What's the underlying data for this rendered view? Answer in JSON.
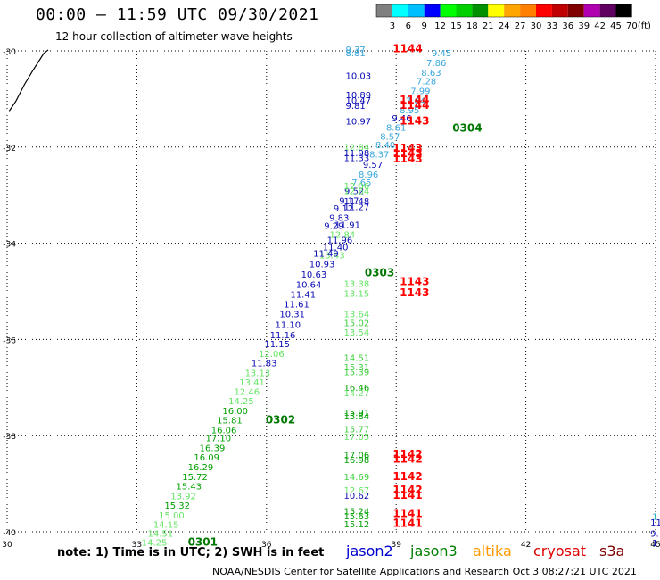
{
  "header": {
    "title": "00:00 – 11:59 UTC 09/30/2021",
    "subtitle": "12 hour collection of altimeter wave heights"
  },
  "legend": {
    "colors": [
      "#808080",
      "#00ffff",
      "#00bfff",
      "#0000ff",
      "#00ff00",
      "#00d000",
      "#009000",
      "#ffff00",
      "#ffa500",
      "#ff8000",
      "#ff0000",
      "#c00000",
      "#800000",
      "#b000b0",
      "#600060",
      "#000000"
    ],
    "labels": [
      "3",
      "6",
      "9",
      "12",
      "15",
      "18",
      "21",
      "24",
      "27",
      "30",
      "33",
      "36",
      "39",
      "42",
      "45",
      "70",
      "(ft)"
    ]
  },
  "axes": {
    "x_ticks": [
      "30",
      "33",
      "36",
      "39",
      "42",
      "45"
    ],
    "y_ticks": [
      "-30",
      "-32",
      "-34",
      "-36",
      "-38",
      "-40"
    ]
  },
  "notes": "note:  1) Time is in UTC;  2) SWH is in feet",
  "satellites": [
    {
      "name": "jason2",
      "color": "#0000d0"
    },
    {
      "name": "jason3",
      "color": "#008000"
    },
    {
      "name": "altika",
      "color": "#ff9900"
    },
    {
      "name": "cryosat",
      "color": "#e00000"
    },
    {
      "name": "s3a",
      "color": "#800000"
    }
  ],
  "footer": "NOAA/NESDIS Center for Satellite Applications and Research    Oct  3 08:27:21 UTC 2021",
  "map_data": {
    "lon_range": [
      30,
      45
    ],
    "lat_range": [
      -40,
      -30
    ],
    "colors": {
      "blue": "#0a0ab4",
      "lightblue": "#38a6dc",
      "red": "#ff0000",
      "green": "#00a000",
      "lightgreen": "#40d040",
      "paleg": "#64e464",
      "darkgreen": "#007800",
      "teal": "#20b4b4"
    },
    "labels": [
      {
        "t": "9.37",
        "lon": 37.83,
        "lat": -30.04,
        "c": "lightblue"
      },
      {
        "t": "8.81",
        "lon": 37.83,
        "lat": -30.11,
        "c": "lightblue"
      },
      {
        "t": "1144",
        "lon": 38.92,
        "lat": -30.03,
        "c": "red",
        "b": 1
      },
      {
        "t": "9.45",
        "lon": 39.82,
        "lat": -30.11,
        "c": "lightblue"
      },
      {
        "t": "7.86",
        "lon": 39.7,
        "lat": -30.32,
        "c": "lightblue"
      },
      {
        "t": "8.63",
        "lon": 39.58,
        "lat": -30.52,
        "c": "lightblue"
      },
      {
        "t": "7.28",
        "lon": 39.47,
        "lat": -30.7,
        "c": "lightblue"
      },
      {
        "t": "7.99",
        "lon": 39.33,
        "lat": -30.9,
        "c": "lightblue"
      },
      {
        "t": "7.64",
        "lon": 39.22,
        "lat": -31.1,
        "c": "lightblue"
      },
      {
        "t": "8.95",
        "lon": 39.08,
        "lat": -31.3,
        "c": "lightblue"
      },
      {
        "t": "9.46",
        "lon": 38.9,
        "lat": -31.47,
        "c": "blue"
      },
      {
        "t": "8.61",
        "lon": 38.77,
        "lat": -31.66,
        "c": "lightblue"
      },
      {
        "t": "8.57",
        "lon": 38.63,
        "lat": -31.85,
        "c": "lightblue"
      },
      {
        "t": "8.40",
        "lon": 38.52,
        "lat": -32.02,
        "c": "lightblue"
      },
      {
        "t": "8.37",
        "lon": 38.38,
        "lat": -32.22,
        "c": "lightblue"
      },
      {
        "t": "9.57",
        "lon": 38.23,
        "lat": -32.43,
        "c": "blue"
      },
      {
        "t": "8.96",
        "lon": 38.13,
        "lat": -32.63,
        "c": "lightblue"
      },
      {
        "t": "7.65",
        "lon": 37.97,
        "lat": -32.8,
        "c": "lightblue"
      },
      {
        "t": "9.52",
        "lon": 37.8,
        "lat": -32.98,
        "c": "blue"
      },
      {
        "t": "9.17",
        "lon": 37.68,
        "lat": -33.18,
        "c": "blue"
      },
      {
        "t": "9.12",
        "lon": 37.55,
        "lat": -33.34,
        "c": "blue"
      },
      {
        "t": "9.83",
        "lon": 37.45,
        "lat": -33.53,
        "c": "blue"
      },
      {
        "t": "9.29",
        "lon": 37.33,
        "lat": -33.7,
        "c": "blue"
      },
      {
        "t": "10.03",
        "lon": 37.83,
        "lat": -30.58,
        "c": "blue"
      },
      {
        "t": "10.89",
        "lon": 37.83,
        "lat": -30.98,
        "c": "blue"
      },
      {
        "t": "10.47",
        "lon": 37.83,
        "lat": -31.09,
        "c": "blue"
      },
      {
        "t": "9.81",
        "lon": 37.83,
        "lat": -31.21,
        "c": "blue"
      },
      {
        "t": "1144",
        "lon": 39.08,
        "lat": -31.09,
        "c": "red",
        "b": 1
      },
      {
        "t": "1144",
        "lon": 39.08,
        "lat": -31.21,
        "c": "red",
        "b": 1
      },
      {
        "t": "10.97",
        "lon": 37.83,
        "lat": -31.53,
        "c": "blue"
      },
      {
        "t": "1143",
        "lon": 39.08,
        "lat": -31.53,
        "c": "red",
        "b": 1
      },
      {
        "t": "0304",
        "lon": 40.3,
        "lat": -31.68,
        "c": "darkgreen",
        "b": 1
      },
      {
        "t": "12.84",
        "lon": 37.79,
        "lat": -32.07,
        "c": "paleg"
      },
      {
        "t": "11.98",
        "lon": 37.79,
        "lat": -32.19,
        "c": "blue"
      },
      {
        "t": "11.33",
        "lon": 37.79,
        "lat": -32.29,
        "c": "blue"
      },
      {
        "t": "1143",
        "lon": 38.92,
        "lat": -32.1,
        "c": "red",
        "b": 1
      },
      {
        "t": "1143",
        "lon": 38.92,
        "lat": -32.21,
        "c": "red",
        "b": 1
      },
      {
        "t": "1143",
        "lon": 38.92,
        "lat": -32.32,
        "c": "red",
        "b": 1
      },
      {
        "t": "12.06",
        "lon": 37.79,
        "lat": -32.88,
        "c": "paleg"
      },
      {
        "t": "12.64",
        "lon": 37.79,
        "lat": -32.98,
        "c": "paleg"
      },
      {
        "t": "11.48",
        "lon": 37.79,
        "lat": -33.19,
        "c": "blue"
      },
      {
        "t": "11.27",
        "lon": 37.79,
        "lat": -33.31,
        "c": "blue"
      },
      {
        "t": "11.91",
        "lon": 37.58,
        "lat": -33.68,
        "c": "blue"
      },
      {
        "t": "12.84",
        "lon": 37.46,
        "lat": -33.89,
        "c": "paleg"
      },
      {
        "t": "11.96",
        "lon": 37.4,
        "lat": -34.0,
        "c": "blue"
      },
      {
        "t": "11.40",
        "lon": 37.3,
        "lat": -34.15,
        "c": "blue"
      },
      {
        "t": "13.43",
        "lon": 37.22,
        "lat": -34.31,
        "c": "paleg"
      },
      {
        "t": "11.49",
        "lon": 37.08,
        "lat": -34.28,
        "c": "blue"
      },
      {
        "t": "10.93",
        "lon": 36.99,
        "lat": -34.5,
        "c": "blue"
      },
      {
        "t": "10.63",
        "lon": 36.8,
        "lat": -34.71,
        "c": "blue"
      },
      {
        "t": "0303",
        "lon": 38.27,
        "lat": -34.68,
        "c": "darkgreen",
        "b": 1
      },
      {
        "t": "10.64",
        "lon": 36.68,
        "lat": -34.93,
        "c": "blue"
      },
      {
        "t": "13.38",
        "lon": 37.79,
        "lat": -34.91,
        "c": "paleg"
      },
      {
        "t": "13.15",
        "lon": 37.79,
        "lat": -35.11,
        "c": "paleg"
      },
      {
        "t": "1143",
        "lon": 39.08,
        "lat": -34.87,
        "c": "red",
        "b": 1
      },
      {
        "t": "1143",
        "lon": 39.08,
        "lat": -35.1,
        "c": "red",
        "b": 1
      },
      {
        "t": "11.41",
        "lon": 36.55,
        "lat": -35.13,
        "c": "blue"
      },
      {
        "t": "11.61",
        "lon": 36.4,
        "lat": -35.33,
        "c": "blue"
      },
      {
        "t": "10.31",
        "lon": 36.3,
        "lat": -35.54,
        "c": "blue"
      },
      {
        "t": "13.64",
        "lon": 37.79,
        "lat": -35.54,
        "c": "paleg"
      },
      {
        "t": "15.02",
        "lon": 37.79,
        "lat": -35.72,
        "c": "lightgreen"
      },
      {
        "t": "11.10",
        "lon": 36.2,
        "lat": -35.76,
        "c": "blue"
      },
      {
        "t": "13.54",
        "lon": 37.79,
        "lat": -35.92,
        "c": "paleg"
      },
      {
        "t": "11.16",
        "lon": 36.08,
        "lat": -35.97,
        "c": "blue"
      },
      {
        "t": "11.15",
        "lon": 35.95,
        "lat": -36.16,
        "c": "blue"
      },
      {
        "t": "12.06",
        "lon": 35.82,
        "lat": -36.36,
        "c": "paleg"
      },
      {
        "t": "14.51",
        "lon": 37.79,
        "lat": -36.45,
        "c": "lightgreen"
      },
      {
        "t": "11.83",
        "lon": 35.65,
        "lat": -36.56,
        "c": "blue"
      },
      {
        "t": "15.31",
        "lon": 37.79,
        "lat": -36.64,
        "c": "lightgreen"
      },
      {
        "t": "15.39",
        "lon": 37.79,
        "lat": -36.74,
        "c": "lightgreen"
      },
      {
        "t": "13.13",
        "lon": 35.5,
        "lat": -36.76,
        "c": "paleg"
      },
      {
        "t": "13.41",
        "lon": 35.37,
        "lat": -36.96,
        "c": "paleg"
      },
      {
        "t": "16.46",
        "lon": 37.79,
        "lat": -37.07,
        "c": "green"
      },
      {
        "t": "14.27",
        "lon": 37.79,
        "lat": -37.18,
        "c": "paleg"
      },
      {
        "t": "12.46",
        "lon": 35.25,
        "lat": -37.15,
        "c": "paleg"
      },
      {
        "t": "14.25",
        "lon": 35.12,
        "lat": -37.35,
        "c": "paleg"
      },
      {
        "t": "16.00",
        "lon": 34.98,
        "lat": -37.55,
        "c": "green"
      },
      {
        "t": "15.91",
        "lon": 37.79,
        "lat": -37.59,
        "c": "green"
      },
      {
        "t": "15.84",
        "lon": 37.79,
        "lat": -37.66,
        "c": "green"
      },
      {
        "t": "15.81",
        "lon": 34.85,
        "lat": -37.75,
        "c": "green"
      },
      {
        "t": "0302",
        "lon": 35.98,
        "lat": -37.75,
        "c": "darkgreen",
        "b": 1
      },
      {
        "t": "16.06",
        "lon": 34.72,
        "lat": -37.95,
        "c": "green"
      },
      {
        "t": "15.77",
        "lon": 37.79,
        "lat": -37.93,
        "c": "lightgreen"
      },
      {
        "t": "17.05",
        "lon": 37.79,
        "lat": -38.09,
        "c": "paleg"
      },
      {
        "t": "17.10",
        "lon": 34.59,
        "lat": -38.12,
        "c": "green"
      },
      {
        "t": "16.39",
        "lon": 34.45,
        "lat": -38.32,
        "c": "green"
      },
      {
        "t": "16.09",
        "lon": 34.32,
        "lat": -38.52,
        "c": "green"
      },
      {
        "t": "17.06",
        "lon": 37.79,
        "lat": -38.47,
        "c": "green"
      },
      {
        "t": "16.98",
        "lon": 37.79,
        "lat": -38.57,
        "c": "green"
      },
      {
        "t": "1142",
        "lon": 38.92,
        "lat": -38.46,
        "c": "red",
        "b": 1
      },
      {
        "t": "1142",
        "lon": 38.92,
        "lat": -38.56,
        "c": "red",
        "b": 1
      },
      {
        "t": "16.29",
        "lon": 34.18,
        "lat": -38.72,
        "c": "green"
      },
      {
        "t": "15.72",
        "lon": 34.05,
        "lat": -38.92,
        "c": "green"
      },
      {
        "t": "14.69",
        "lon": 37.79,
        "lat": -38.92,
        "c": "lightgreen"
      },
      {
        "t": "1142",
        "lon": 38.92,
        "lat": -38.92,
        "c": "red",
        "b": 1
      },
      {
        "t": "15.43",
        "lon": 33.91,
        "lat": -39.12,
        "c": "green"
      },
      {
        "t": "12.67",
        "lon": 37.79,
        "lat": -39.2,
        "c": "paleg"
      },
      {
        "t": "10.62",
        "lon": 37.79,
        "lat": -39.31,
        "c": "blue"
      },
      {
        "t": "1142",
        "lon": 38.92,
        "lat": -39.2,
        "c": "red",
        "b": 1
      },
      {
        "t": "1141",
        "lon": 38.92,
        "lat": -39.31,
        "c": "red",
        "b": 1
      },
      {
        "t": "13.92",
        "lon": 33.78,
        "lat": -39.32,
        "c": "paleg"
      },
      {
        "t": "15.32",
        "lon": 33.64,
        "lat": -39.52,
        "c": "green"
      },
      {
        "t": "15.24",
        "lon": 37.79,
        "lat": -39.64,
        "c": "green"
      },
      {
        "t": "15.63",
        "lon": 37.79,
        "lat": -39.74,
        "c": "green"
      },
      {
        "t": "15.12",
        "lon": 37.79,
        "lat": -39.91,
        "c": "green"
      },
      {
        "t": "1141",
        "lon": 38.92,
        "lat": -39.69,
        "c": "red",
        "b": 1
      },
      {
        "t": "1141",
        "lon": 38.92,
        "lat": -39.9,
        "c": "red",
        "b": 1
      },
      {
        "t": "15.00",
        "lon": 33.51,
        "lat": -39.72,
        "c": "paleg"
      },
      {
        "t": "14.15",
        "lon": 33.38,
        "lat": -39.92,
        "c": "paleg"
      },
      {
        "t": "14.51",
        "lon": 33.25,
        "lat": -40.1,
        "c": "paleg"
      },
      {
        "t": "14.25",
        "lon": 33.11,
        "lat": -40.29,
        "c": "paleg"
      },
      {
        "t": "0301",
        "lon": 34.18,
        "lat": -40.29,
        "c": "darkgreen",
        "b": 1
      },
      {
        "t": "1",
        "lon": 44.92,
        "lat": -39.75,
        "c": "teal"
      },
      {
        "t": "11",
        "lon": 44.88,
        "lat": -39.87,
        "c": "blue"
      },
      {
        "t": "9.",
        "lon": 44.88,
        "lat": -40.1,
        "c": "blue"
      },
      {
        "t": "1",
        "lon": 44.92,
        "lat": -40.3,
        "c": "blue"
      }
    ],
    "coastline": [
      [
        30.05,
        -31.25
      ],
      [
        30.2,
        -31.05
      ],
      [
        30.4,
        -30.7
      ],
      [
        30.6,
        -30.4
      ],
      [
        30.85,
        -30.05
      ],
      [
        30.95,
        -29.98
      ]
    ]
  }
}
